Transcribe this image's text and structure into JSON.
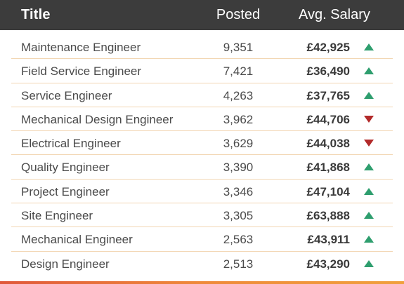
{
  "header": {
    "title": "Title",
    "posted": "Posted",
    "salary": "Avg. Salary"
  },
  "colors": {
    "header_bg": "#3c3c3c",
    "up": "#2e9e6e",
    "down": "#b22a2a",
    "divider": "#f2d6b3",
    "accent_bar": "#ef8a3a"
  },
  "rows": [
    {
      "title": "Maintenance Engineer",
      "posted": "9,351",
      "salary": "£42,925",
      "trend": "up"
    },
    {
      "title": "Field Service Engineer",
      "posted": "7,421",
      "salary": "£36,490",
      "trend": "up"
    },
    {
      "title": "Service Engineer",
      "posted": "4,263",
      "salary": "£37,765",
      "trend": "up"
    },
    {
      "title": "Mechanical Design Engineer",
      "posted": "3,962",
      "salary": "£44,706",
      "trend": "down"
    },
    {
      "title": "Electrical Engineer",
      "posted": "3,629",
      "salary": "£44,038",
      "trend": "down"
    },
    {
      "title": "Quality Engineer",
      "posted": "3,390",
      "salary": "£41,868",
      "trend": "up"
    },
    {
      "title": "Project Engineer",
      "posted": "3,346",
      "salary": "£47,104",
      "trend": "up"
    },
    {
      "title": "Site Engineer",
      "posted": "3,305",
      "salary": "£63,888",
      "trend": "up"
    },
    {
      "title": "Mechanical Engineer",
      "posted": "2,563",
      "salary": "£43,911",
      "trend": "up"
    },
    {
      "title": "Design Engineer",
      "posted": "2,513",
      "salary": "£43,290",
      "trend": "up"
    }
  ]
}
